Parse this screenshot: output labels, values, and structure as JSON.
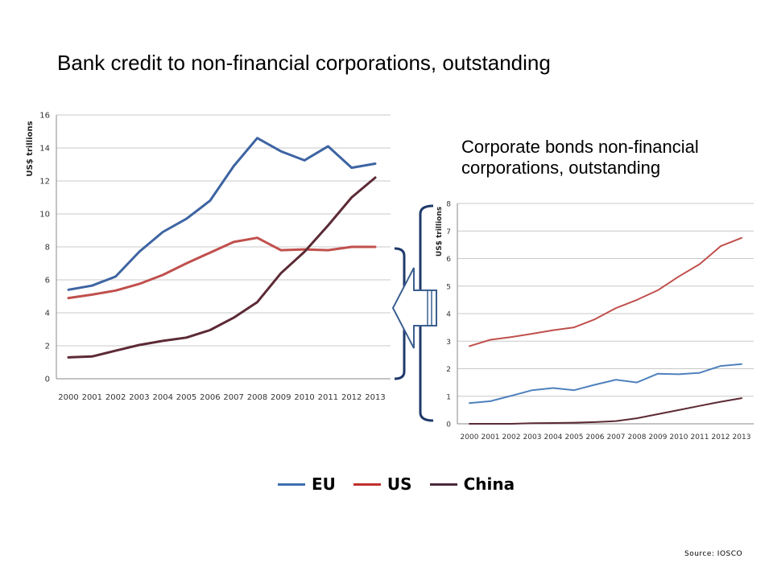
{
  "chart_data": [
    {
      "type": "line",
      "title": "Bank credit to non-financial corporations, outstanding",
      "ylabel": "US$ trillions",
      "ylim": [
        0,
        16
      ],
      "yticks": [
        0,
        2,
        4,
        6,
        8,
        10,
        12,
        14,
        16
      ],
      "x": [
        "2000",
        "2001",
        "2002",
        "2003",
        "2004",
        "2005",
        "2006",
        "2007",
        "2008",
        "2009",
        "2010",
        "2011",
        "2012",
        "2013"
      ],
      "series": [
        {
          "name": "EU",
          "color": "#3d64a2",
          "values": [
            5.4,
            5.65,
            6.2,
            7.7,
            8.9,
            9.7,
            10.8,
            12.9,
            14.6,
            13.8,
            13.25,
            14.1,
            12.8,
            13.05
          ]
        },
        {
          "name": "US",
          "color": "#c0504d",
          "values": [
            4.9,
            5.1,
            5.35,
            5.75,
            6.3,
            7.0,
            7.65,
            8.3,
            8.55,
            7.8,
            7.85,
            7.8,
            8.0,
            8.0
          ]
        },
        {
          "name": "China",
          "color": "#5c2a35",
          "values": [
            1.3,
            1.35,
            1.7,
            2.05,
            2.3,
            2.5,
            2.95,
            3.7,
            4.65,
            6.4,
            7.7,
            9.3,
            11.0,
            12.2
          ]
        }
      ],
      "grid": true
    },
    {
      "type": "line",
      "title": "Corporate bonds non-financial corporations, outstanding",
      "ylabel": "US$ trillions",
      "ylim": [
        0,
        8
      ],
      "yticks": [
        0,
        1,
        2,
        3,
        4,
        5,
        6,
        7,
        8
      ],
      "x": [
        "2000",
        "2001",
        "2002",
        "2003",
        "2004",
        "2005",
        "2006",
        "2007",
        "2008",
        "2009",
        "2010",
        "2011",
        "2012",
        "2013"
      ],
      "series": [
        {
          "name": "EU",
          "color": "#4f81bd",
          "values": [
            0.75,
            0.82,
            1.02,
            1.22,
            1.3,
            1.22,
            1.42,
            1.6,
            1.5,
            1.82,
            1.8,
            1.85,
            2.1,
            2.17
          ]
        },
        {
          "name": "US",
          "color": "#c0504d",
          "values": [
            2.82,
            3.05,
            3.15,
            3.27,
            3.4,
            3.5,
            3.8,
            4.2,
            4.5,
            4.85,
            5.35,
            5.8,
            6.45,
            6.75
          ]
        },
        {
          "name": "China",
          "color": "#5c2a35",
          "values": [
            0.0,
            0.0,
            0.0,
            0.02,
            0.03,
            0.04,
            0.06,
            0.1,
            0.2,
            0.35,
            0.5,
            0.65,
            0.8,
            0.93
          ]
        }
      ],
      "grid": true
    }
  ],
  "legend": [
    {
      "label": "EU",
      "color": "#3d6fb0"
    },
    {
      "label": "US",
      "color": "#c0302d"
    },
    {
      "label": "China",
      "color": "#4b2a3a"
    }
  ],
  "source": "Source: IOSCO"
}
